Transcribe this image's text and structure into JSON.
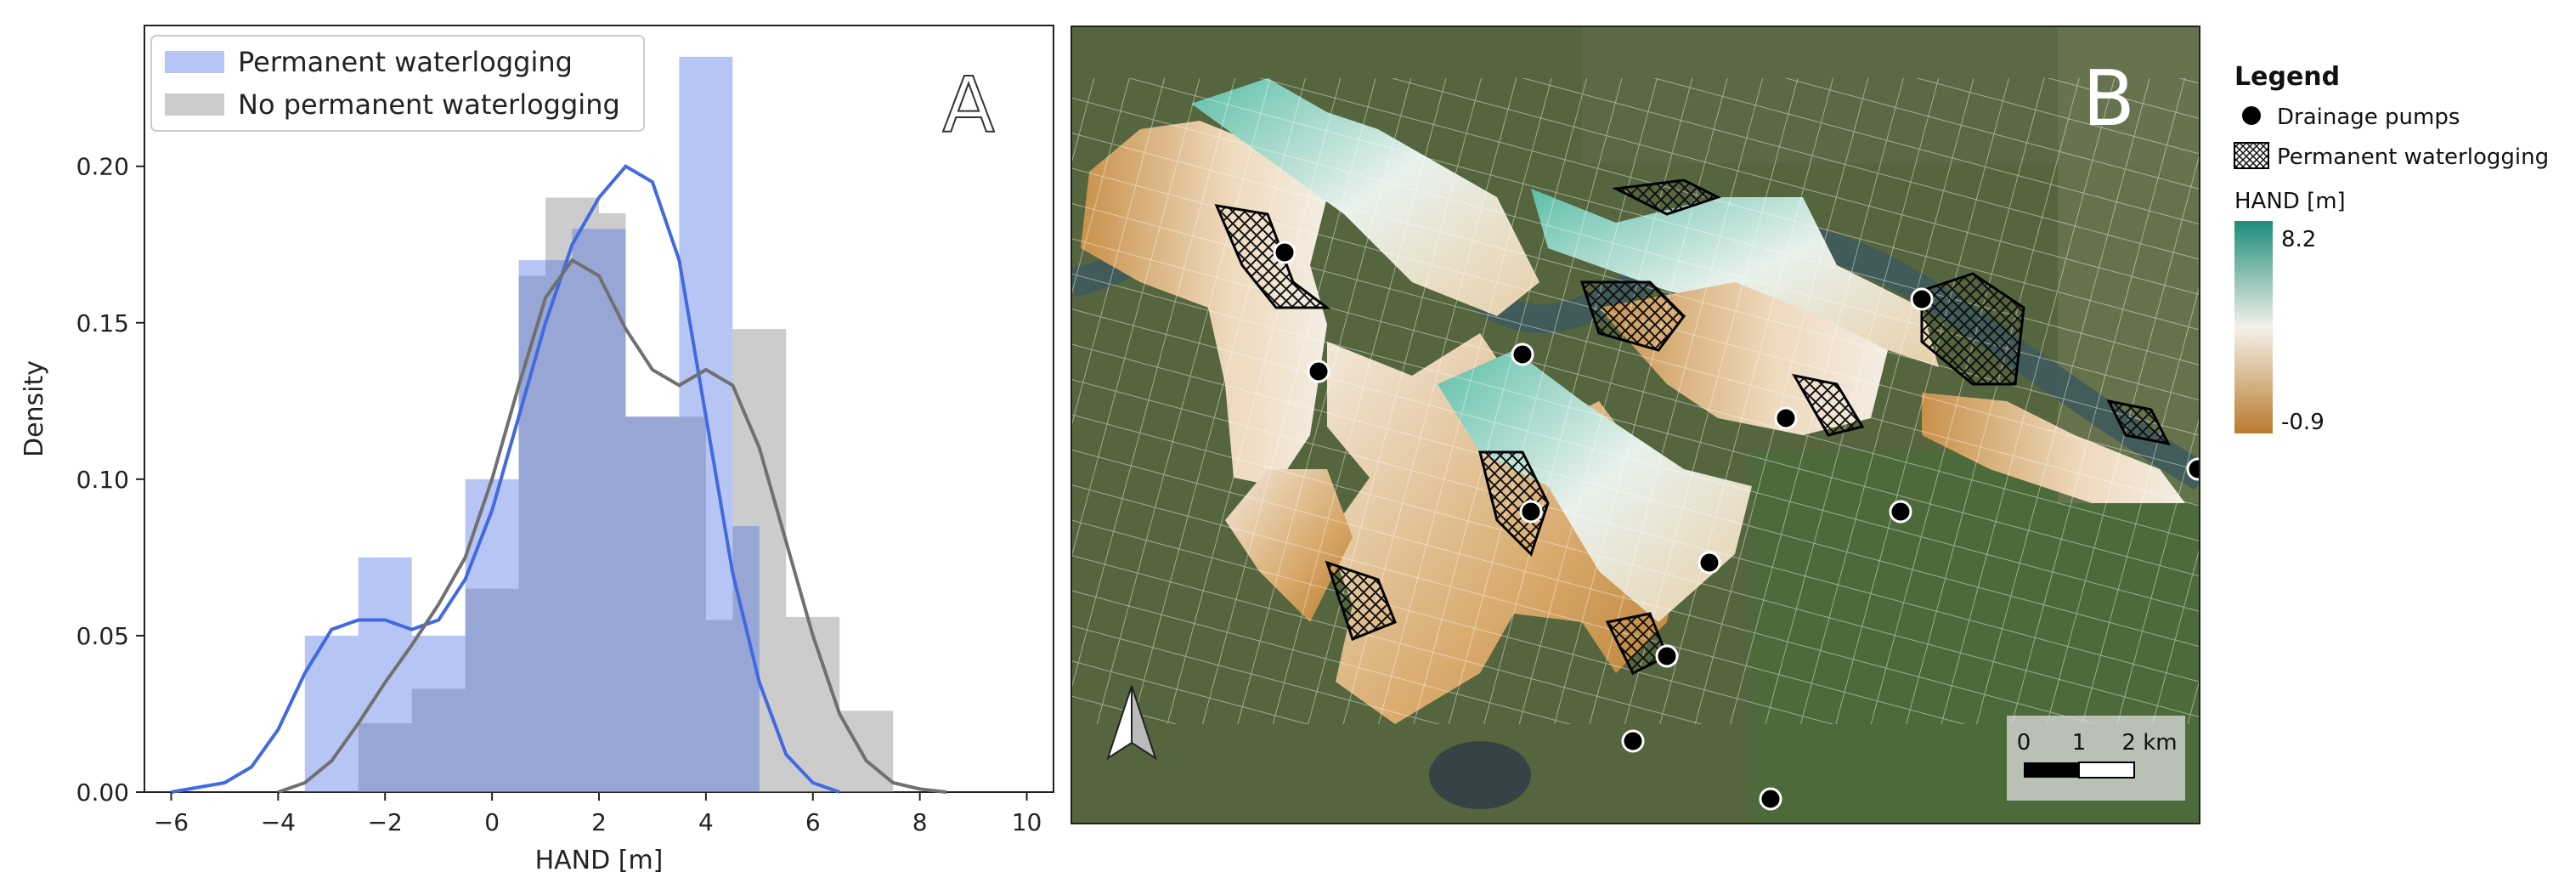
{
  "chart_data": [
    {
      "type": "histogram",
      "panel_letter": "A",
      "xlabel": "HAND [m]",
      "ylabel": "Density",
      "xlim": [
        -6.5,
        10.5
      ],
      "ylim": [
        0,
        0.245
      ],
      "xticks": [
        -6,
        -4,
        -2,
        0,
        2,
        4,
        6,
        8,
        10
      ],
      "xtick_labels": [
        "−6",
        "−4",
        "−2",
        "0",
        "2",
        "4",
        "6",
        "8",
        "10"
      ],
      "yticks": [
        0,
        0.05,
        0.1,
        0.15,
        0.2
      ],
      "ytick_labels": [
        "0.00",
        "0.05",
        "0.10",
        "0.15",
        "0.20"
      ],
      "legend_position": "top-left",
      "series": [
        {
          "name": "Permanent waterlogging",
          "color": "#4a6fe3",
          "bins": [
            {
              "x0": -3.5,
              "x1": -2.5,
              "value": 0.05
            },
            {
              "x0": -2.5,
              "x1": -1.5,
              "value": 0.075
            },
            {
              "x0": -1.5,
              "x1": -0.5,
              "value": 0.05
            },
            {
              "x0": -0.5,
              "x1": 0.5,
              "value": 0.1
            },
            {
              "x0": 0.5,
              "x1": 1.5,
              "value": 0.17
            },
            {
              "x0": 1.5,
              "x1": 2.5,
              "value": 0.18
            },
            {
              "x0": 2.5,
              "x1": 3.5,
              "value": 0.12
            },
            {
              "x0": 3.5,
              "x1": 4.5,
              "value": 0.235
            },
            {
              "x0": 4.5,
              "x1": 5.0,
              "value": 0.085
            }
          ],
          "kde": {
            "x": [
              -6,
              -5,
              -4.5,
              -4,
              -3.5,
              -3,
              -2.5,
              -2,
              -1.5,
              -1,
              -0.5,
              0,
              0.5,
              1,
              1.5,
              2,
              2.5,
              3,
              3.5,
              4,
              4.5,
              5,
              5.5,
              6,
              6.5
            ],
            "y": [
              0.0,
              0.003,
              0.008,
              0.02,
              0.038,
              0.052,
              0.055,
              0.055,
              0.052,
              0.055,
              0.068,
              0.09,
              0.12,
              0.15,
              0.175,
              0.19,
              0.2,
              0.195,
              0.17,
              0.12,
              0.07,
              0.035,
              0.012,
              0.003,
              0.0
            ]
          }
        },
        {
          "name": "No permanent waterlogging",
          "color": "#9a9a9a",
          "bins": [
            {
              "x0": -2.5,
              "x1": -1.5,
              "value": 0.022
            },
            {
              "x0": -1.5,
              "x1": -0.5,
              "value": 0.033
            },
            {
              "x0": -0.5,
              "x1": 0.5,
              "value": 0.065
            },
            {
              "x0": 0.5,
              "x1": 1.0,
              "value": 0.165
            },
            {
              "x0": 1.0,
              "x1": 2.0,
              "value": 0.19
            },
            {
              "x0": 2.0,
              "x1": 2.5,
              "value": 0.185
            },
            {
              "x0": 2.5,
              "x1": 4.0,
              "value": 0.12
            },
            {
              "x0": 4.0,
              "x1": 4.5,
              "value": 0.055
            },
            {
              "x0": 4.5,
              "x1": 5.5,
              "value": 0.148
            },
            {
              "x0": 5.5,
              "x1": 6.5,
              "value": 0.056
            },
            {
              "x0": 6.5,
              "x1": 7.5,
              "value": 0.026
            }
          ],
          "kde": {
            "x": [
              -4,
              -3.5,
              -3,
              -2.5,
              -2,
              -1.5,
              -1,
              -0.5,
              0,
              0.5,
              1,
              1.5,
              2,
              2.5,
              3,
              3.5,
              4,
              4.5,
              5,
              5.5,
              6,
              6.5,
              7,
              7.5,
              8,
              8.5
            ],
            "y": [
              0.0,
              0.003,
              0.01,
              0.022,
              0.035,
              0.047,
              0.06,
              0.075,
              0.1,
              0.13,
              0.158,
              0.17,
              0.165,
              0.148,
              0.135,
              0.13,
              0.135,
              0.13,
              0.11,
              0.08,
              0.05,
              0.025,
              0.01,
              0.003,
              0.001,
              0.0
            ]
          }
        }
      ]
    }
  ],
  "map": {
    "panel_letter": "B",
    "legend": {
      "title": "Legend",
      "pumps_label": "Drainage pumps",
      "waterlogging_label": "Permanent waterlogging",
      "hand_title": "HAND [m]",
      "hand_max": "8.2",
      "hand_min": "-0.9",
      "colors": {
        "high": "#1e8c7a",
        "mid": "#f4f1ea",
        "low": "#b97b2d"
      }
    },
    "scale_bar": {
      "ticks": [
        "0",
        "1",
        "2 km"
      ]
    },
    "north_arrow": "north-arrow-icon"
  }
}
